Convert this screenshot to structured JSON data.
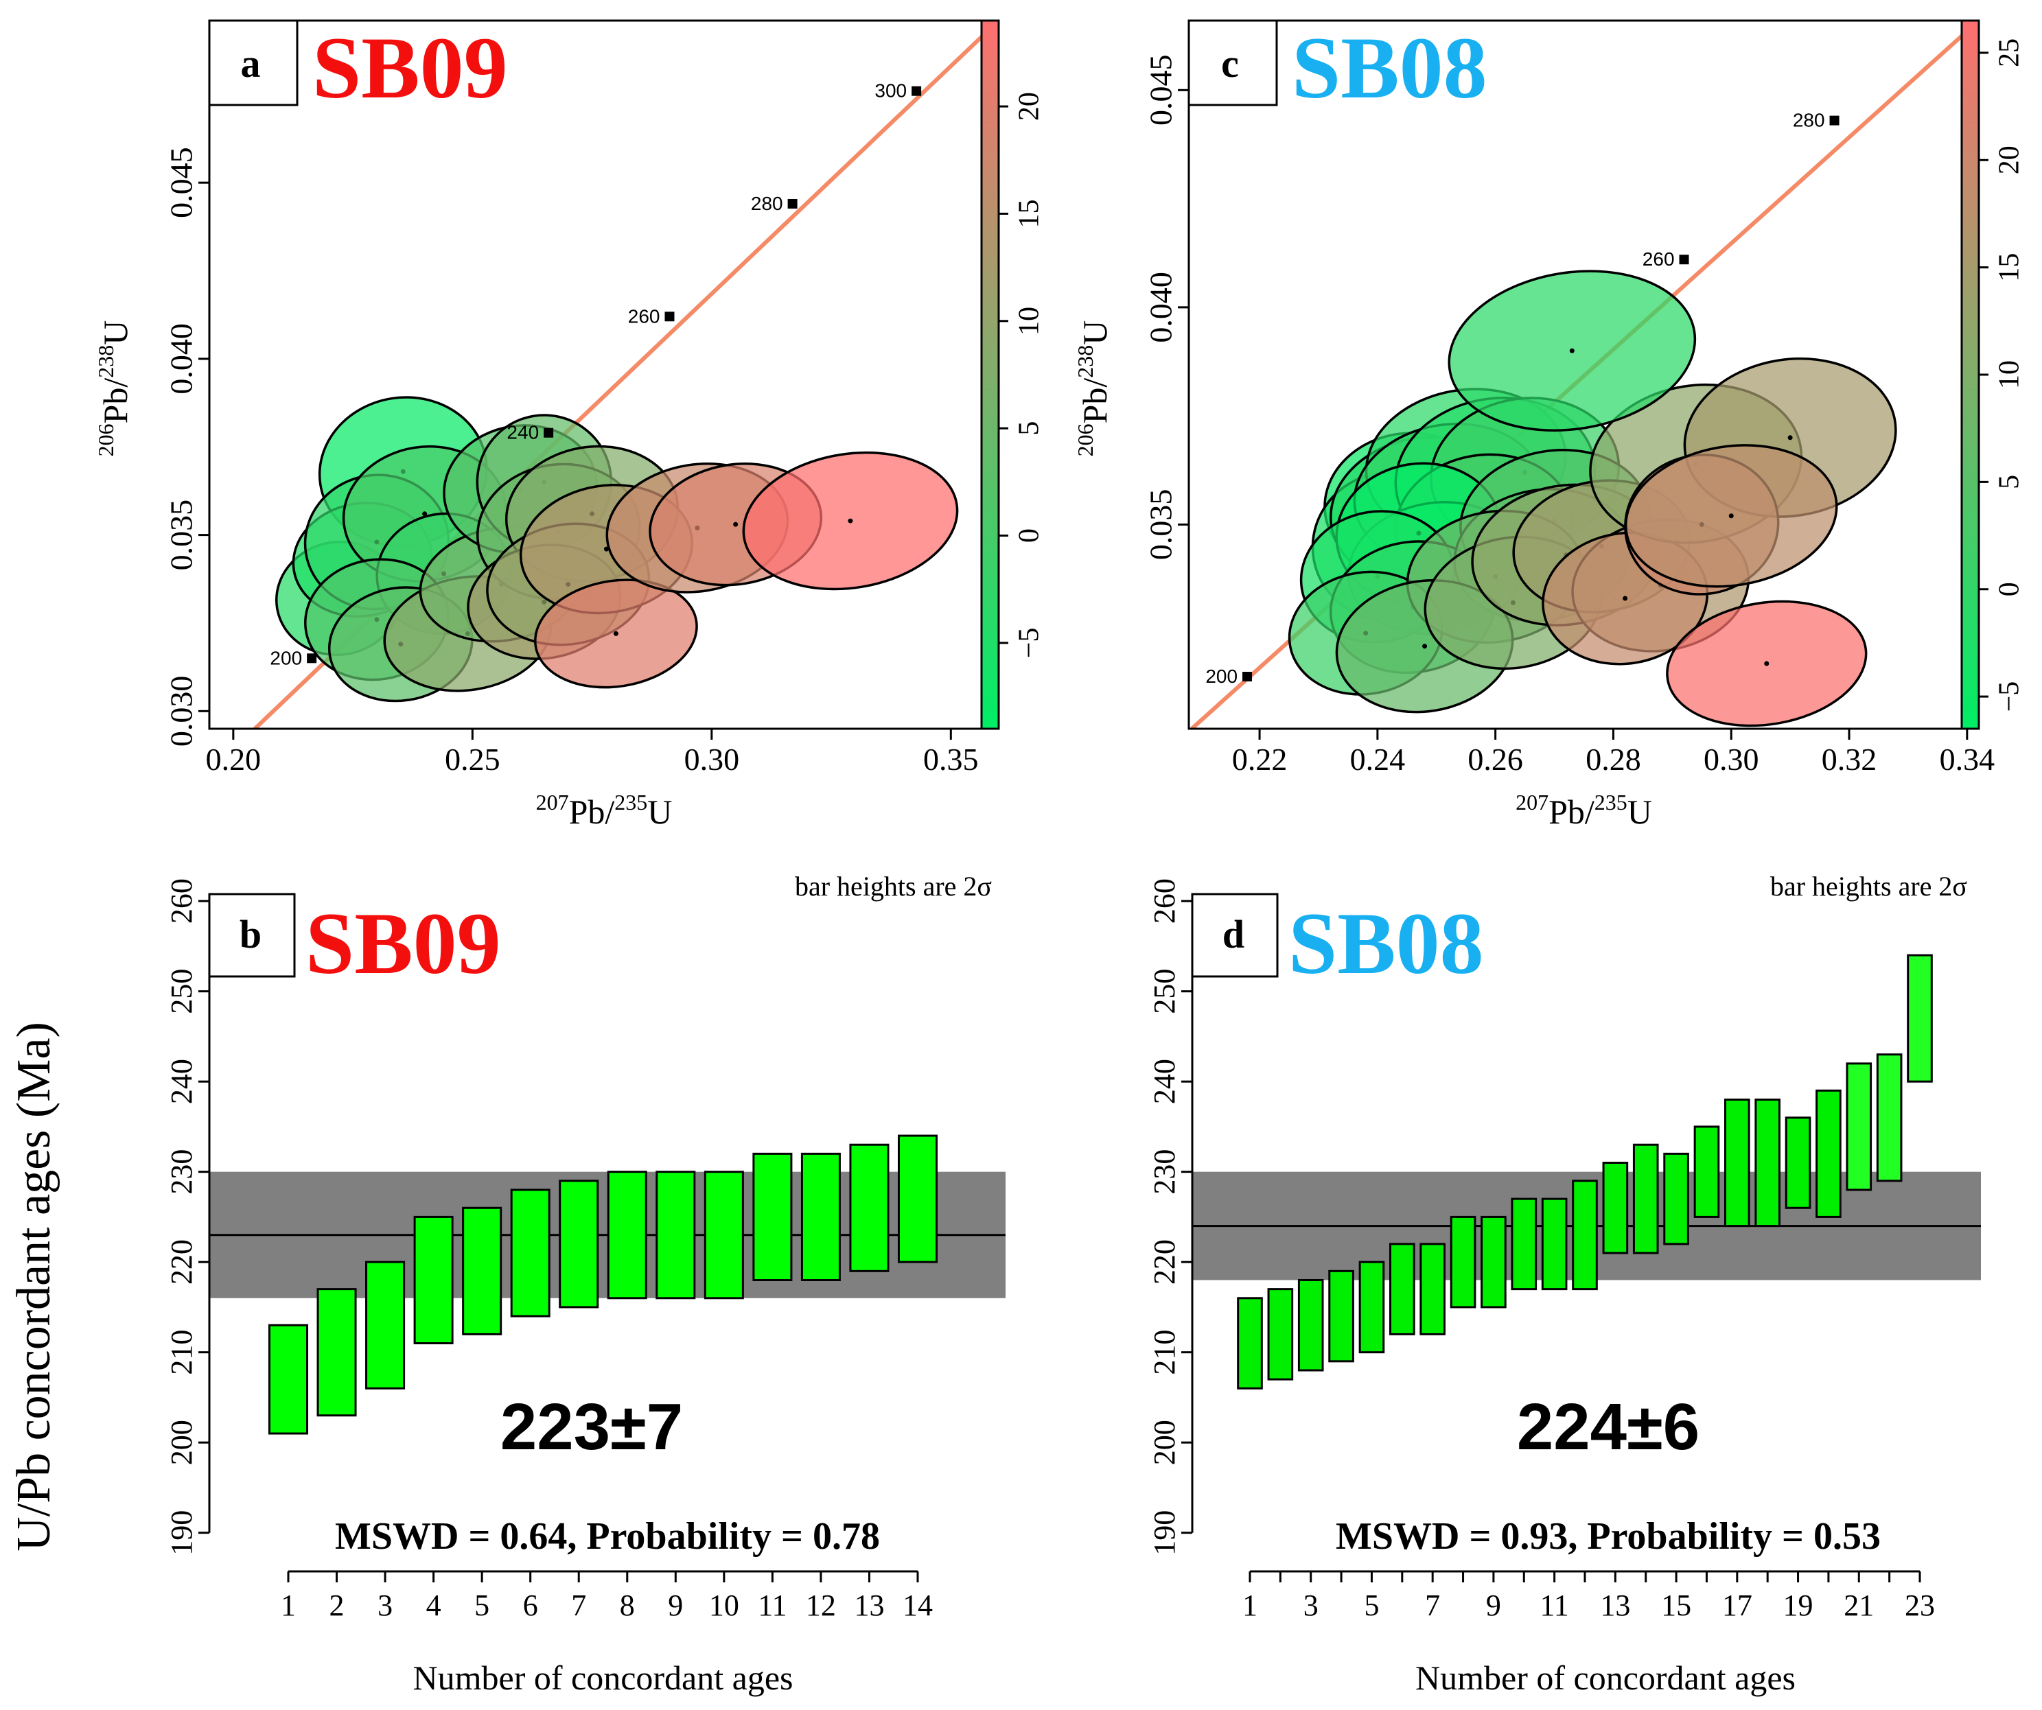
{
  "figure": {
    "shared_ylabel": "U/Pb concordant ages (Ma)"
  },
  "chart_data": [
    {
      "id": "a",
      "type": "scatter",
      "panel_letter": "a",
      "sample": "SB09",
      "sample_color": "#f40f0f",
      "xlabel_parts": [
        "207",
        "Pb/",
        "235",
        "U"
      ],
      "ylabel_parts": [
        "206",
        "Pb/",
        "238",
        "U"
      ],
      "xlim": [
        0.195,
        0.36
      ],
      "ylim": [
        0.0295,
        0.0496
      ],
      "xticks": [
        0.2,
        0.25,
        0.3,
        0.35
      ],
      "xtick_labels": [
        "0.20",
        "0.25",
        "0.30",
        "0.35"
      ],
      "yticks": [
        0.03,
        0.035,
        0.04,
        0.045
      ],
      "ytick_labels": [
        "0.030",
        "0.035",
        "0.040",
        "0.045"
      ],
      "colorbar": {
        "range": [
          -9,
          24
        ],
        "ticks": [
          -5,
          0,
          5,
          10,
          15,
          20
        ],
        "tick_labels": [
          "−5",
          "0",
          "5",
          "10",
          "15",
          "20"
        ],
        "low_color": "#00ee66",
        "high_color": "#ff6f6f"
      },
      "concordia": {
        "line": [
          [
            0.2045,
            0.0295
          ],
          [
            0.36,
            0.0496
          ]
        ],
        "markers": [
          {
            "age": "200",
            "x": 0.2164,
            "y": 0.0315
          },
          {
            "age": "240",
            "x": 0.2659,
            "y": 0.0379
          },
          {
            "age": "260",
            "x": 0.2912,
            "y": 0.0412
          },
          {
            "age": "280",
            "x": 0.3169,
            "y": 0.0444
          },
          {
            "age": "300",
            "x": 0.3428,
            "y": 0.0476
          }
        ]
      },
      "ellipses": [
        {
          "x": 0.2355,
          "y": 0.0368,
          "rx": 0.0175,
          "ry": 0.0021,
          "d": -8
        },
        {
          "x": 0.222,
          "y": 0.0332,
          "rx": 0.013,
          "ry": 0.0016,
          "d": -4
        },
        {
          "x": 0.227,
          "y": 0.0343,
          "rx": 0.0145,
          "ry": 0.0016,
          "d": -5
        },
        {
          "x": 0.23,
          "y": 0.0348,
          "rx": 0.015,
          "ry": 0.0019,
          "d": -3
        },
        {
          "x": 0.24,
          "y": 0.0356,
          "rx": 0.017,
          "ry": 0.0019,
          "d": 0
        },
        {
          "x": 0.244,
          "y": 0.0339,
          "rx": 0.014,
          "ry": 0.0017,
          "d": -2
        },
        {
          "x": 0.23,
          "y": 0.0326,
          "rx": 0.015,
          "ry": 0.0017,
          "d": 1
        },
        {
          "x": 0.235,
          "y": 0.0319,
          "rx": 0.015,
          "ry": 0.0016,
          "d": 3
        },
        {
          "x": 0.249,
          "y": 0.0322,
          "rx": 0.0175,
          "ry": 0.0016,
          "d": 9
        },
        {
          "x": 0.256,
          "y": 0.0336,
          "rx": 0.017,
          "ry": 0.0016,
          "d": 6
        },
        {
          "x": 0.26,
          "y": 0.0363,
          "rx": 0.016,
          "ry": 0.0018,
          "d": 2
        },
        {
          "x": 0.265,
          "y": 0.0365,
          "rx": 0.014,
          "ry": 0.0019,
          "d": 4
        },
        {
          "x": 0.268,
          "y": 0.0351,
          "rx": 0.017,
          "ry": 0.0019,
          "d": 5
        },
        {
          "x": 0.275,
          "y": 0.0356,
          "rx": 0.018,
          "ry": 0.0019,
          "d": 8
        },
        {
          "x": 0.265,
          "y": 0.0331,
          "rx": 0.016,
          "ry": 0.0016,
          "d": 12
        },
        {
          "x": 0.27,
          "y": 0.0336,
          "rx": 0.017,
          "ry": 0.0017,
          "d": 10
        },
        {
          "x": 0.278,
          "y": 0.0346,
          "rx": 0.018,
          "ry": 0.0018,
          "d": 14
        },
        {
          "x": 0.28,
          "y": 0.0322,
          "rx": 0.017,
          "ry": 0.0015,
          "d": 20
        },
        {
          "x": 0.297,
          "y": 0.0352,
          "rx": 0.019,
          "ry": 0.0018,
          "d": 17
        },
        {
          "x": 0.305,
          "y": 0.0353,
          "rx": 0.018,
          "ry": 0.0017,
          "d": 19
        },
        {
          "x": 0.329,
          "y": 0.0354,
          "rx": 0.0225,
          "ry": 0.0019,
          "d": 24
        }
      ]
    },
    {
      "id": "b",
      "type": "bar",
      "panel_letter": "b",
      "sample": "SB09",
      "sample_color": "#f40f0f",
      "note": "bar heights are 2σ",
      "xlabel": "Number of concordant ages",
      "categories": [
        "1",
        "2",
        "3",
        "4",
        "5",
        "6",
        "7",
        "8",
        "9",
        "10",
        "11",
        "12",
        "13",
        "14"
      ],
      "lows": [
        201,
        203,
        206,
        211,
        212,
        214,
        215,
        216,
        216,
        216,
        218,
        218,
        219,
        220
      ],
      "highs": [
        213,
        217,
        220,
        225,
        226,
        228,
        229,
        230,
        230,
        230,
        232,
        232,
        233,
        234
      ],
      "bar_color": "#00ff00",
      "ylim": [
        188,
        261
      ],
      "yticks": [
        190,
        200,
        210,
        220,
        230,
        240,
        250,
        260
      ],
      "mean": 223,
      "band": [
        216,
        230
      ],
      "weighted_mean_label": "223±7",
      "stats_label": "MSWD = 0.64, Probability = 0.78"
    },
    {
      "id": "c",
      "type": "scatter",
      "panel_letter": "c",
      "sample": "SB08",
      "sample_color": "#18b0f0",
      "xlabel_parts": [
        "207",
        "Pb/",
        "235",
        "U"
      ],
      "ylabel_parts": [
        "206",
        "Pb/",
        "238",
        "U"
      ],
      "xlim": [
        0.208,
        0.342
      ],
      "ylim": [
        0.0303,
        0.0466
      ],
      "xticks": [
        0.22,
        0.24,
        0.26,
        0.28,
        0.3,
        0.32,
        0.34
      ],
      "xtick_labels": [
        "0.22",
        "0.24",
        "0.26",
        "0.28",
        "0.30",
        "0.32",
        "0.34"
      ],
      "yticks": [
        0.035,
        0.04,
        0.045
      ],
      "ytick_labels": [
        "0.035",
        "0.040",
        "0.045"
      ],
      "colorbar": {
        "range": [
          -6.5,
          26.5
        ],
        "ticks": [
          -5,
          0,
          5,
          10,
          15,
          20,
          25
        ],
        "tick_labels": [
          "−5",
          "0",
          "5",
          "10",
          "15",
          "20",
          "25"
        ],
        "low_color": "#00ee66",
        "high_color": "#ff6f6f"
      },
      "concordia": {
        "line": [
          [
            0.2085,
            0.0303
          ],
          [
            0.342,
            0.0466
          ]
        ],
        "markers": [
          {
            "age": "200",
            "x": 0.2179,
            "y": 0.0315
          },
          {
            "age": "260",
            "x": 0.292,
            "y": 0.0411
          },
          {
            "age": "280",
            "x": 0.3175,
            "y": 0.0443
          }
        ]
      },
      "ellipses": [
        {
          "x": 0.245,
          "y": 0.0355,
          "rx": 0.014,
          "ry": 0.0016,
          "d": -5
        },
        {
          "x": 0.242,
          "y": 0.0345,
          "rx": 0.013,
          "ry": 0.0017,
          "d": -3
        },
        {
          "x": 0.248,
          "y": 0.0353,
          "rx": 0.016,
          "ry": 0.0017,
          "d": -2
        },
        {
          "x": 0.255,
          "y": 0.0364,
          "rx": 0.017,
          "ry": 0.0017,
          "d": -1
        },
        {
          "x": 0.252,
          "y": 0.0357,
          "rx": 0.016,
          "ry": 0.0016,
          "d": 0
        },
        {
          "x": 0.26,
          "y": 0.0361,
          "rx": 0.017,
          "ry": 0.0018,
          "d": -2
        },
        {
          "x": 0.265,
          "y": 0.0362,
          "rx": 0.016,
          "ry": 0.0017,
          "d": 1
        },
        {
          "x": 0.258,
          "y": 0.035,
          "rx": 0.015,
          "ry": 0.0016,
          "d": 2
        },
        {
          "x": 0.25,
          "y": 0.034,
          "rx": 0.015,
          "ry": 0.0015,
          "d": -4
        },
        {
          "x": 0.247,
          "y": 0.0348,
          "rx": 0.014,
          "ry": 0.0016,
          "d": -6
        },
        {
          "x": 0.24,
          "y": 0.0338,
          "rx": 0.013,
          "ry": 0.0015,
          "d": -3
        },
        {
          "x": 0.246,
          "y": 0.0331,
          "rx": 0.014,
          "ry": 0.0015,
          "d": -1
        },
        {
          "x": 0.238,
          "y": 0.0325,
          "rx": 0.013,
          "ry": 0.0014,
          "d": 1
        },
        {
          "x": 0.27,
          "y": 0.0351,
          "rx": 0.016,
          "ry": 0.0016,
          "d": 4
        },
        {
          "x": 0.268,
          "y": 0.0343,
          "rx": 0.015,
          "ry": 0.0015,
          "d": 6
        },
        {
          "x": 0.26,
          "y": 0.0338,
          "rx": 0.015,
          "ry": 0.0015,
          "d": 8
        },
        {
          "x": 0.248,
          "y": 0.0322,
          "rx": 0.015,
          "ry": 0.0015,
          "d": 7
        },
        {
          "x": 0.263,
          "y": 0.0332,
          "rx": 0.015,
          "ry": 0.0015,
          "d": 10
        },
        {
          "x": 0.272,
          "y": 0.0343,
          "rx": 0.016,
          "ry": 0.0016,
          "d": 12
        },
        {
          "x": 0.278,
          "y": 0.0345,
          "rx": 0.015,
          "ry": 0.0015,
          "d": 14
        },
        {
          "x": 0.288,
          "y": 0.0336,
          "rx": 0.015,
          "ry": 0.0015,
          "d": 16
        },
        {
          "x": 0.282,
          "y": 0.0333,
          "rx": 0.014,
          "ry": 0.0015,
          "d": 19
        },
        {
          "x": 0.294,
          "y": 0.0364,
          "rx": 0.018,
          "ry": 0.0018,
          "d": 12
        },
        {
          "x": 0.31,
          "y": 0.037,
          "rx": 0.018,
          "ry": 0.0018,
          "d": 15
        },
        {
          "x": 0.295,
          "y": 0.035,
          "rx": 0.013,
          "ry": 0.0016,
          "d": 20
        },
        {
          "x": 0.3,
          "y": 0.0352,
          "rx": 0.018,
          "ry": 0.0016,
          "d": 18
        },
        {
          "x": 0.273,
          "y": 0.039,
          "rx": 0.021,
          "ry": 0.0018,
          "d": -1
        },
        {
          "x": 0.306,
          "y": 0.0318,
          "rx": 0.017,
          "ry": 0.0014,
          "d": 26
        }
      ]
    },
    {
      "id": "d",
      "type": "bar",
      "panel_letter": "d",
      "sample": "SB08",
      "sample_color": "#18b0f0",
      "note": "bar heights are 2σ",
      "xlabel": "Number of concordant ages",
      "categories": [
        "1",
        "2",
        "3",
        "4",
        "5",
        "6",
        "7",
        "8",
        "9",
        "10",
        "11",
        "12",
        "13",
        "14",
        "15",
        "16",
        "17",
        "18",
        "19",
        "20",
        "21",
        "22",
        "23"
      ],
      "xtick_labels": [
        "1",
        "",
        "3",
        "",
        "5",
        "",
        "7",
        "",
        "9",
        "",
        "11",
        "",
        "13",
        "",
        "15",
        "",
        "17",
        "",
        "19",
        "",
        "21",
        "",
        "23"
      ],
      "lows": [
        206,
        207,
        208,
        209,
        210,
        212,
        212,
        215,
        215,
        217,
        217,
        217,
        221,
        221,
        222,
        225,
        224,
        224,
        226,
        225,
        228,
        229,
        240
      ],
      "highs": [
        216,
        217,
        218,
        219,
        220,
        222,
        222,
        225,
        225,
        227,
        227,
        229,
        231,
        233,
        232,
        235,
        238,
        238,
        236,
        239,
        242,
        243,
        254
      ],
      "bar_colors": [
        "#00ee00",
        "#00ee00",
        "#00ee00",
        "#00ee00",
        "#00ee00",
        "#00ee00",
        "#00ee00",
        "#00ee00",
        "#00ee00",
        "#00ee00",
        "#00ee00",
        "#00ee00",
        "#00ee00",
        "#00ee00",
        "#00ee00",
        "#00ee00",
        "#00ee00",
        "#00ee00",
        "#00ee00",
        "#00ee00",
        "#22ff22",
        "#22ff22",
        "#22ff22"
      ],
      "ylim": [
        188,
        261
      ],
      "yticks": [
        190,
        200,
        210,
        220,
        230,
        240,
        250,
        260
      ],
      "mean": 224,
      "band": [
        218,
        230
      ],
      "weighted_mean_label": "224±6",
      "stats_label": "MSWD = 0.93, Probability = 0.53"
    }
  ]
}
